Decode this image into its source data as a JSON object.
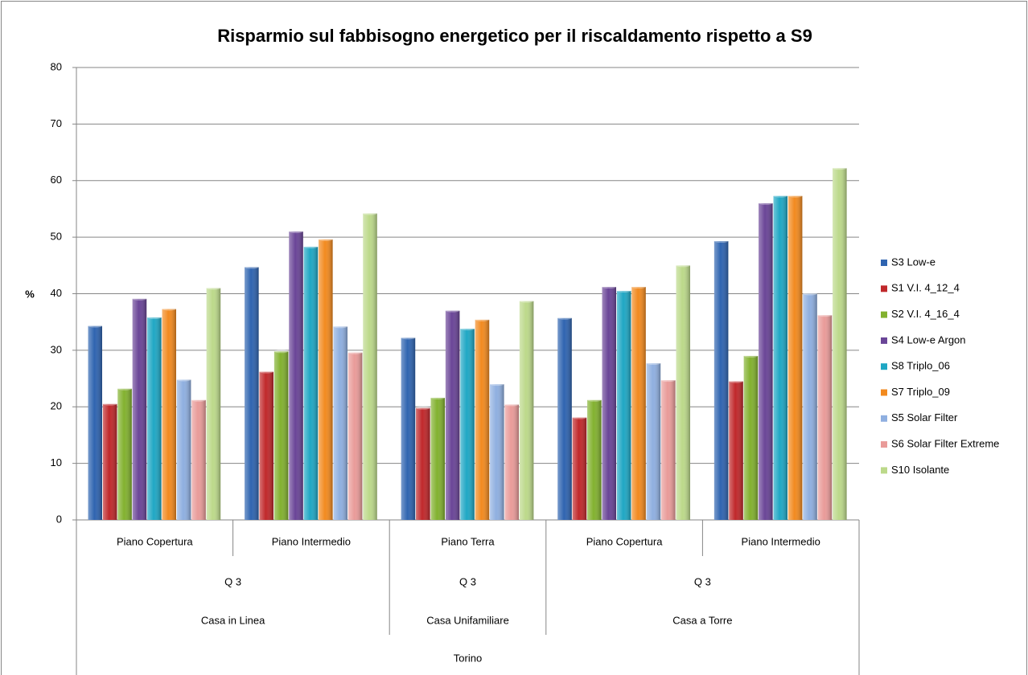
{
  "chart_data": {
    "type": "bar",
    "title": "Risparmio sul fabbisogno energetico per il riscaldamento rispetto a S9",
    "y_label": "%",
    "x_hierarchy": {
      "label": "Torino",
      "children": [
        {
          "label": "Casa in Linea",
          "children": [
            {
              "label": "Q 3",
              "children": [
                "Piano Copertura",
                "Piano Intermedio"
              ]
            }
          ]
        },
        {
          "label": "Casa Unifamiliare",
          "children": [
            {
              "label": "Q 3",
              "children": [
                "Piano Terra"
              ]
            }
          ]
        },
        {
          "label": "Casa a Torre",
          "children": [
            {
              "label": "Q 3",
              "children": [
                "Piano Copertura",
                "Piano Intermedio"
              ]
            }
          ]
        }
      ]
    },
    "series": [
      {
        "name": "S3 Low-e",
        "color": "#2f64b0",
        "values": [
          34.3,
          44.7,
          32.2,
          35.7,
          49.3
        ]
      },
      {
        "name": "S1 V.I. 4_12_4",
        "color": "#c0282b",
        "values": [
          20.5,
          26.2,
          19.8,
          18.1,
          24.5
        ]
      },
      {
        "name": "S2 V.I. 4_16_4",
        "color": "#82b12f",
        "values": [
          23.2,
          29.8,
          21.6,
          21.2,
          29.0
        ]
      },
      {
        "name": "S4 Low-e Argon",
        "color": "#6a4597",
        "values": [
          39.1,
          51.0,
          37.0,
          41.2,
          56.0
        ]
      },
      {
        "name": "S8 Triplo_06",
        "color": "#1fa7c4",
        "values": [
          35.8,
          48.3,
          33.8,
          40.5,
          57.3
        ]
      },
      {
        "name": "S7 Triplo_09",
        "color": "#f28a1f",
        "values": [
          37.3,
          49.6,
          35.4,
          41.2,
          57.3
        ]
      },
      {
        "name": "S5 Solar Filter",
        "color": "#8fafe0",
        "values": [
          24.8,
          34.2,
          24.0,
          27.7,
          40.0
        ]
      },
      {
        "name": "S6 Solar Filter Extreme",
        "color": "#e99b99",
        "values": [
          21.2,
          29.6,
          20.4,
          24.7,
          36.2
        ]
      },
      {
        "name": "S10 Isolante",
        "color": "#bcd98a",
        "values": [
          41.0,
          54.2,
          38.7,
          45.0,
          62.2
        ]
      }
    ],
    "ylim": [
      0,
      80
    ],
    "yticks": [
      0,
      10,
      20,
      30,
      40,
      50,
      60,
      70,
      80
    ],
    "grid": true,
    "legend": "right"
  }
}
